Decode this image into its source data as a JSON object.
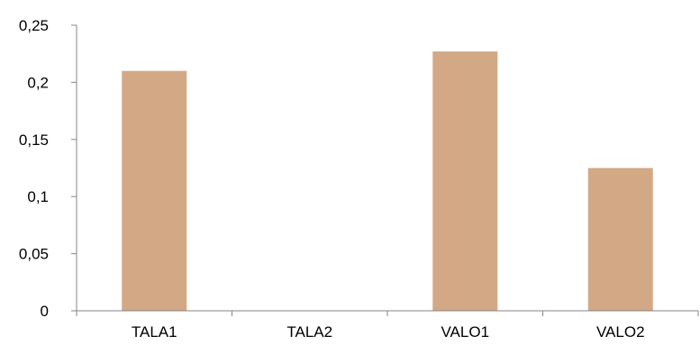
{
  "chart_data": {
    "type": "bar",
    "categories": [
      "TALA1",
      "TALA2",
      "VALO1",
      "VALO2"
    ],
    "series": [
      {
        "values": [
          0.21,
          0,
          0.227,
          0.125
        ]
      }
    ],
    "yticks": [
      "0",
      "0,05",
      "0,1",
      "0,15",
      "0,2",
      "0,25"
    ],
    "ylim": [
      0,
      0.25
    ],
    "title": "",
    "xlabel": "",
    "ylabel": "",
    "grid": false,
    "legend": "none",
    "bar_color": "#D3A885",
    "axis_color": "#868686"
  }
}
